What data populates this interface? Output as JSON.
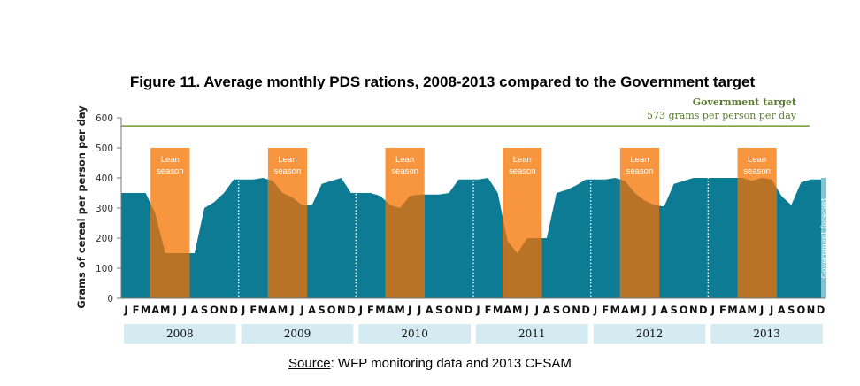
{
  "chart_data": {
    "type": "area",
    "title": "Figure 11. Average monthly PDS rations, 2008-2013 compared to the Government target",
    "ylabel": "Grams of cereal per person per day",
    "xlabel": "",
    "ylim": [
      0,
      600
    ],
    "yticks": [
      0,
      100,
      200,
      300,
      400,
      500,
      600
    ],
    "month_letters": [
      "J",
      "F",
      "M",
      "A",
      "M",
      "J",
      "J",
      "A",
      "S",
      "O",
      "N",
      "D"
    ],
    "years": [
      "2008",
      "2009",
      "2010",
      "2011",
      "2012",
      "2013"
    ],
    "values": [
      350,
      350,
      350,
      280,
      150,
      150,
      150,
      150,
      300,
      320,
      350,
      395,
      395,
      395,
      400,
      390,
      350,
      335,
      310,
      310,
      380,
      390,
      400,
      350,
      350,
      350,
      340,
      310,
      300,
      340,
      345,
      345,
      345,
      350,
      395,
      395,
      395,
      400,
      350,
      190,
      150,
      200,
      200,
      200,
      350,
      360,
      375,
      395,
      395,
      395,
      400,
      390,
      350,
      325,
      310,
      305,
      380,
      390,
      400,
      400,
      400,
      400,
      400,
      400,
      390,
      400,
      395,
      340,
      310,
      385,
      395,
      395
    ],
    "series_color": "#0d7b94",
    "lean_season": {
      "label_line1": "Lean",
      "label_line2": "season",
      "start_month_index": 3,
      "end_month_index": 6,
      "color": "#f7963f",
      "overlap_color": "#b87326"
    },
    "target": {
      "value": 573,
      "label_line1": "Government target",
      "label_line2": "573 grams per person per day",
      "color": "#7aa342"
    },
    "forecast": {
      "label": "Government forecast",
      "from_month_index": 71,
      "color": "#7fc5d6"
    },
    "grid": false,
    "year_band_color": "#d4ebf2"
  },
  "source": {
    "label": "Source",
    "text": ": WFP monitoring data and 2013 CFSAM"
  }
}
